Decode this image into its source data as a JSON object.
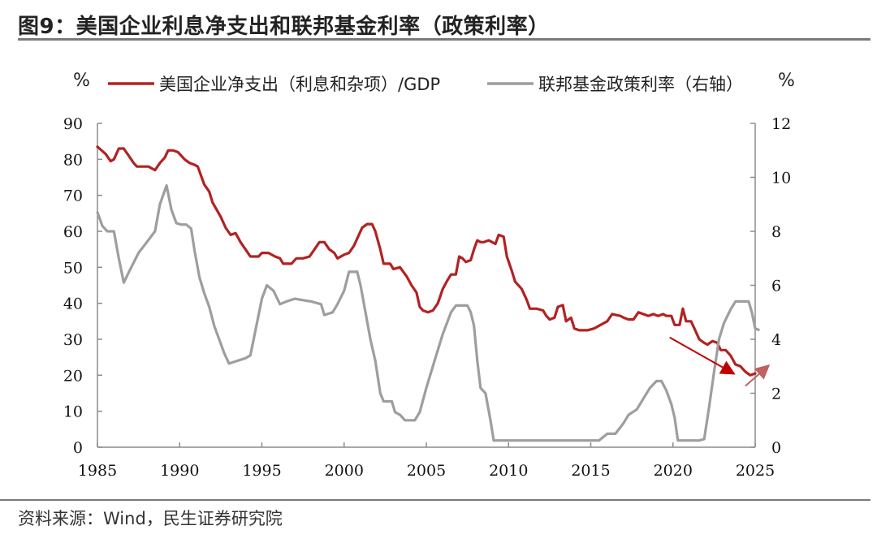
{
  "figure": {
    "title": "图9：美国企业利息净支出和联邦基金利率（政策利率）",
    "source": "资料来源：Wind，民生证券研究院"
  },
  "chart_data": {
    "type": "line",
    "title": "",
    "left_unit": "%",
    "right_unit": "%",
    "x_ticks": [
      "1985",
      "1990",
      "1995",
      "2000",
      "2005",
      "2010",
      "2015",
      "2020",
      "2025"
    ],
    "xlim": [
      1985,
      2025
    ],
    "y_left": {
      "lim": [
        0,
        90
      ],
      "ticks": [
        "0",
        "10",
        "20",
        "30",
        "40",
        "50",
        "60",
        "70",
        "80",
        "90"
      ]
    },
    "y_right": {
      "lim": [
        0,
        12
      ],
      "ticks": [
        "0",
        "2",
        "4",
        "6",
        "8",
        "10",
        "12"
      ]
    },
    "legend_position": "top",
    "grid": false,
    "series": [
      {
        "name": "美国企业净支出（利息和杂项）/GDP",
        "axis": "left",
        "color": "#b22222",
        "points": [
          [
            1985,
            83.5
          ],
          [
            1985.5,
            81.5
          ],
          [
            1985.8,
            79.5
          ],
          [
            1986,
            80
          ],
          [
            1986.3,
            83
          ],
          [
            1986.6,
            83
          ],
          [
            1986.9,
            81
          ],
          [
            1987.2,
            79
          ],
          [
            1987.4,
            78
          ],
          [
            1987.8,
            78
          ],
          [
            1988.1,
            78
          ],
          [
            1988.5,
            77
          ],
          [
            1988.8,
            79
          ],
          [
            1989.1,
            80.5
          ],
          [
            1989.3,
            82.5
          ],
          [
            1989.6,
            82.5
          ],
          [
            1989.9,
            82
          ],
          [
            1990.3,
            80
          ],
          [
            1990.6,
            79
          ],
          [
            1990.9,
            78.5
          ],
          [
            1991.1,
            78
          ],
          [
            1991.5,
            73
          ],
          [
            1991.8,
            71
          ],
          [
            1992,
            68
          ],
          [
            1992.5,
            64
          ],
          [
            1992.8,
            61
          ],
          [
            1993.1,
            59
          ],
          [
            1993.4,
            59.5
          ],
          [
            1993.7,
            57
          ],
          [
            1994,
            55
          ],
          [
            1994.3,
            53
          ],
          [
            1994.8,
            53
          ],
          [
            1995,
            54
          ],
          [
            1995.4,
            54
          ],
          [
            1995.8,
            53
          ],
          [
            1996.1,
            52.5
          ],
          [
            1996.3,
            51
          ],
          [
            1996.8,
            51
          ],
          [
            1997.1,
            52.5
          ],
          [
            1997.5,
            52.5
          ],
          [
            1997.9,
            53
          ],
          [
            1998.2,
            55
          ],
          [
            1998.5,
            57
          ],
          [
            1998.8,
            57
          ],
          [
            1999.1,
            55
          ],
          [
            1999.4,
            54
          ],
          [
            1999.6,
            52.5
          ],
          [
            2000,
            53.5
          ],
          [
            2000.3,
            54
          ],
          [
            2000.6,
            56
          ],
          [
            2000.8,
            58
          ],
          [
            2001.1,
            61
          ],
          [
            2001.4,
            62
          ],
          [
            2001.7,
            62
          ],
          [
            2001.9,
            60
          ],
          [
            2002.2,
            55
          ],
          [
            2002.4,
            51
          ],
          [
            2002.8,
            51
          ],
          [
            2003,
            49.5
          ],
          [
            2003.4,
            50
          ],
          [
            2003.8,
            47.5
          ],
          [
            2004.1,
            45
          ],
          [
            2004.4,
            43
          ],
          [
            2004.6,
            39
          ],
          [
            2004.8,
            38
          ],
          [
            2005.1,
            37.5
          ],
          [
            2005.4,
            38
          ],
          [
            2005.7,
            40
          ],
          [
            2006,
            44
          ],
          [
            2006.3,
            46.5
          ],
          [
            2006.5,
            48
          ],
          [
            2006.8,
            48
          ],
          [
            2007,
            53
          ],
          [
            2007.2,
            52.5
          ],
          [
            2007.4,
            51.5
          ],
          [
            2007.7,
            52
          ],
          [
            2007.9,
            55
          ],
          [
            2008.1,
            57.5
          ],
          [
            2008.3,
            57
          ],
          [
            2008.5,
            57
          ],
          [
            2008.8,
            57.5
          ],
          [
            2009,
            57
          ],
          [
            2009.2,
            56.5
          ],
          [
            2009.4,
            59
          ],
          [
            2009.7,
            58.5
          ],
          [
            2009.9,
            53
          ],
          [
            2010.2,
            49
          ],
          [
            2010.4,
            46
          ],
          [
            2010.8,
            44
          ],
          [
            2011.1,
            41
          ],
          [
            2011.3,
            38.5
          ],
          [
            2011.7,
            38.5
          ],
          [
            2012.1,
            38
          ],
          [
            2012.3,
            36.5
          ],
          [
            2012.5,
            35.5
          ],
          [
            2012.8,
            36
          ],
          [
            2013,
            39
          ],
          [
            2013.3,
            39.5
          ],
          [
            2013.5,
            35
          ],
          [
            2013.8,
            36
          ],
          [
            2014,
            33
          ],
          [
            2014.3,
            32.5
          ],
          [
            2014.8,
            32.5
          ],
          [
            2015.2,
            33
          ],
          [
            2015.6,
            34
          ],
          [
            2016,
            35
          ],
          [
            2016.3,
            37
          ],
          [
            2016.8,
            36.5
          ],
          [
            2017,
            36
          ],
          [
            2017.3,
            35.5
          ],
          [
            2017.6,
            35.5
          ],
          [
            2017.9,
            37.5
          ],
          [
            2018.2,
            37
          ],
          [
            2018.5,
            36.5
          ],
          [
            2018.8,
            37
          ],
          [
            2019.1,
            36.5
          ],
          [
            2019.4,
            37
          ],
          [
            2019.6,
            36.5
          ],
          [
            2019.9,
            36.5
          ],
          [
            2020.1,
            34
          ],
          [
            2020.4,
            34
          ],
          [
            2020.6,
            38.5
          ],
          [
            2020.8,
            35
          ],
          [
            2021.1,
            35
          ],
          [
            2021.3,
            33
          ],
          [
            2021.6,
            30
          ],
          [
            2021.9,
            29
          ],
          [
            2022.1,
            28.5
          ],
          [
            2022.4,
            29.5
          ],
          [
            2022.7,
            29
          ],
          [
            2022.9,
            27
          ],
          [
            2023.2,
            27
          ],
          [
            2023.5,
            25.5
          ],
          [
            2023.8,
            23
          ],
          [
            2024.1,
            22.5
          ],
          [
            2024.4,
            21
          ],
          [
            2024.7,
            20
          ],
          [
            2025,
            20.5
          ]
        ]
      },
      {
        "name": "联邦基金政策利率（右轴）",
        "axis": "right",
        "color": "#9e9e9e",
        "points": [
          [
            1985,
            8.7
          ],
          [
            1985.3,
            8.2
          ],
          [
            1985.6,
            8.0
          ],
          [
            1986,
            8.0
          ],
          [
            1986.3,
            7.0
          ],
          [
            1986.6,
            6.1
          ],
          [
            1987,
            6.6
          ],
          [
            1987.5,
            7.2
          ],
          [
            1988,
            7.6
          ],
          [
            1988.5,
            8.0
          ],
          [
            1988.8,
            9.0
          ],
          [
            1989.2,
            9.7
          ],
          [
            1989.5,
            8.8
          ],
          [
            1989.8,
            8.3
          ],
          [
            1990.1,
            8.25
          ],
          [
            1990.4,
            8.25
          ],
          [
            1990.7,
            8.1
          ],
          [
            1990.9,
            7.3
          ],
          [
            1991.2,
            6.3
          ],
          [
            1991.5,
            5.7
          ],
          [
            1991.8,
            5.2
          ],
          [
            1992.1,
            4.5
          ],
          [
            1992.4,
            4.0
          ],
          [
            1992.7,
            3.5
          ],
          [
            1993,
            3.1
          ],
          [
            1993.5,
            3.2
          ],
          [
            1994,
            3.3
          ],
          [
            1994.3,
            3.4
          ],
          [
            1994.6,
            4.3
          ],
          [
            1995,
            5.5
          ],
          [
            1995.3,
            6.0
          ],
          [
            1995.7,
            5.8
          ],
          [
            1996.1,
            5.3
          ],
          [
            1996.5,
            5.4
          ],
          [
            1997,
            5.5
          ],
          [
            1997.5,
            5.45
          ],
          [
            1998,
            5.4
          ],
          [
            1998.6,
            5.3
          ],
          [
            1998.8,
            4.9
          ],
          [
            1999.3,
            5.0
          ],
          [
            1999.6,
            5.3
          ],
          [
            2000,
            5.8
          ],
          [
            2000.3,
            6.5
          ],
          [
            2000.8,
            6.5
          ],
          [
            2001,
            6.0
          ],
          [
            2001.3,
            5.0
          ],
          [
            2001.6,
            4.0
          ],
          [
            2001.9,
            3.2
          ],
          [
            2002.2,
            2.0
          ],
          [
            2002.4,
            1.7
          ],
          [
            2002.9,
            1.7
          ],
          [
            2003.1,
            1.3
          ],
          [
            2003.4,
            1.2
          ],
          [
            2003.7,
            1.0
          ],
          [
            2004,
            1.0
          ],
          [
            2004.3,
            1.0
          ],
          [
            2004.6,
            1.3
          ],
          [
            2005,
            2.2
          ],
          [
            2005.5,
            3.2
          ],
          [
            2006,
            4.2
          ],
          [
            2006.5,
            5.0
          ],
          [
            2006.8,
            5.25
          ],
          [
            2007.5,
            5.25
          ],
          [
            2007.7,
            5.0
          ],
          [
            2007.9,
            4.5
          ],
          [
            2008.1,
            3.2
          ],
          [
            2008.3,
            2.2
          ],
          [
            2008.6,
            2.0
          ],
          [
            2008.9,
            1.0
          ],
          [
            2009.1,
            0.25
          ],
          [
            2015.5,
            0.25
          ],
          [
            2016,
            0.5
          ],
          [
            2016.5,
            0.5
          ],
          [
            2017,
            0.9
          ],
          [
            2017.3,
            1.2
          ],
          [
            2017.8,
            1.4
          ],
          [
            2018.2,
            1.8
          ],
          [
            2018.6,
            2.2
          ],
          [
            2019,
            2.45
          ],
          [
            2019.3,
            2.45
          ],
          [
            2019.6,
            2.1
          ],
          [
            2019.9,
            1.6
          ],
          [
            2020.1,
            1.1
          ],
          [
            2020.3,
            0.25
          ],
          [
            2021.6,
            0.25
          ],
          [
            2021.9,
            0.3
          ],
          [
            2022.2,
            1.5
          ],
          [
            2022.5,
            2.8
          ],
          [
            2022.8,
            4.0
          ],
          [
            2023.1,
            4.6
          ],
          [
            2023.5,
            5.1
          ],
          [
            2023.8,
            5.4
          ],
          [
            2024.6,
            5.4
          ],
          [
            2024.8,
            5.0
          ],
          [
            2025,
            4.4
          ],
          [
            2025.2,
            4.35
          ]
        ]
      }
    ],
    "annotations": [
      {
        "type": "arrow",
        "color": "#c00000",
        "description": "down",
        "from": [
          2019.8,
          30.5
        ],
        "to": [
          2023.8,
          20.2
        ]
      },
      {
        "type": "arrow",
        "color": "#c06060",
        "description": "up",
        "from": [
          2024.4,
          17
        ],
        "to": [
          2025.9,
          23
        ]
      }
    ]
  }
}
